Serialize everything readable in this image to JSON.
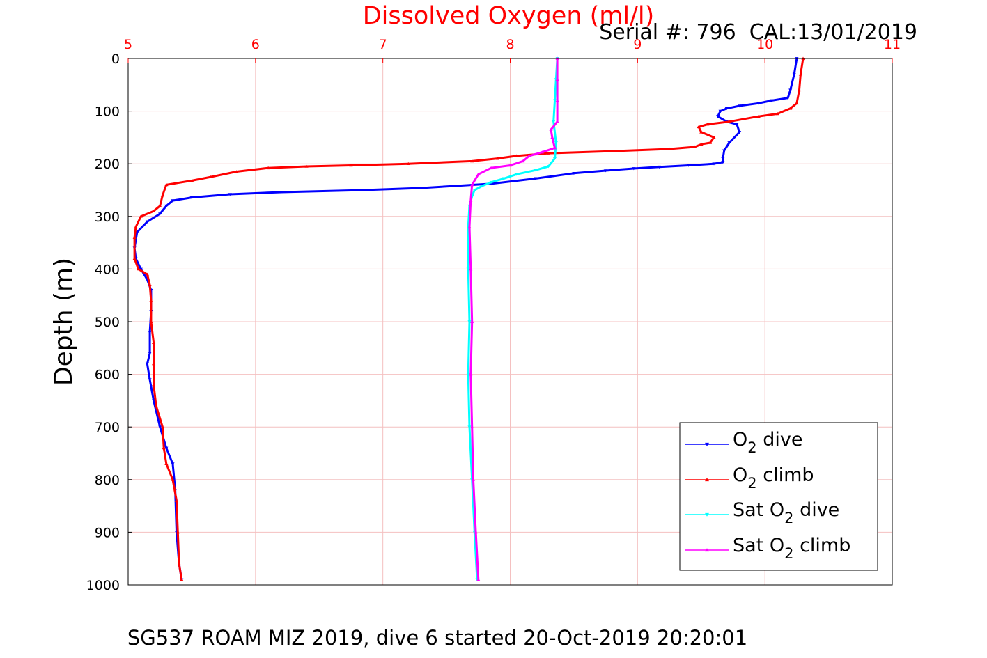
{
  "chart_data": {
    "type": "line",
    "title": "Dissolved Oxygen (ml/l)",
    "subtitle": "Serial #: 796  CAL:13/01/2019",
    "caption": "SG537 ROAM MIZ 2019, dive 6 started 20-Oct-2019 20:20:01",
    "xlabel": "",
    "ylabel": "Depth (m)",
    "xlim": [
      5,
      11
    ],
    "ylim": [
      0,
      1000
    ],
    "y_reversed": true,
    "x_axis_position": "top",
    "x_ticks": [
      5,
      6,
      7,
      8,
      9,
      10,
      11
    ],
    "y_ticks": [
      0,
      100,
      200,
      300,
      400,
      500,
      600,
      700,
      800,
      900,
      1000
    ],
    "grid": true,
    "legend_position": "bottom-right",
    "colors": {
      "title": "#ff0000",
      "x_ticks": "#ff0000",
      "grid": "#f4c0c0"
    },
    "series": [
      {
        "name": "O2 dive",
        "label_main": "O",
        "label_sub": "2",
        "label_rest": " dive",
        "color": "#0000ff",
        "marker": "triangle-down",
        "points": [
          [
            10.25,
            0
          ],
          [
            10.23,
            30
          ],
          [
            10.2,
            60
          ],
          [
            10.18,
            75
          ],
          [
            10.05,
            80
          ],
          [
            9.95,
            85
          ],
          [
            9.8,
            90
          ],
          [
            9.7,
            95
          ],
          [
            9.65,
            100
          ],
          [
            9.63,
            110
          ],
          [
            9.7,
            120
          ],
          [
            9.78,
            125
          ],
          [
            9.8,
            140
          ],
          [
            9.72,
            160
          ],
          [
            9.68,
            175
          ],
          [
            9.67,
            190
          ],
          [
            9.67,
            197
          ],
          [
            9.6,
            200
          ],
          [
            9.4,
            203
          ],
          [
            9.17,
            206
          ],
          [
            8.97,
            209
          ],
          [
            8.75,
            213
          ],
          [
            8.5,
            218
          ],
          [
            8.2,
            228
          ],
          [
            7.85,
            238
          ],
          [
            7.3,
            246
          ],
          [
            6.85,
            250
          ],
          [
            6.2,
            254
          ],
          [
            5.8,
            258
          ],
          [
            5.5,
            264
          ],
          [
            5.35,
            270
          ],
          [
            5.3,
            280
          ],
          [
            5.25,
            295
          ],
          [
            5.15,
            310
          ],
          [
            5.07,
            330
          ],
          [
            5.05,
            360
          ],
          [
            5.06,
            380
          ],
          [
            5.1,
            400
          ],
          [
            5.15,
            420
          ],
          [
            5.18,
            440
          ],
          [
            5.18,
            480
          ],
          [
            5.17,
            520
          ],
          [
            5.17,
            560
          ],
          [
            5.15,
            580
          ],
          [
            5.17,
            610
          ],
          [
            5.2,
            650
          ],
          [
            5.25,
            700
          ],
          [
            5.3,
            740
          ],
          [
            5.35,
            770
          ],
          [
            5.37,
            820
          ],
          [
            5.38,
            900
          ],
          [
            5.4,
            960
          ],
          [
            5.42,
            990
          ]
        ]
      },
      {
        "name": "O2 climb",
        "label_main": "O",
        "label_sub": "2",
        "label_rest": " climb",
        "color": "#ff0000",
        "marker": "triangle-up",
        "points": [
          [
            5.42,
            990
          ],
          [
            5.4,
            960
          ],
          [
            5.39,
            900
          ],
          [
            5.38,
            840
          ],
          [
            5.35,
            800
          ],
          [
            5.3,
            770
          ],
          [
            5.28,
            740
          ],
          [
            5.27,
            700
          ],
          [
            5.22,
            660
          ],
          [
            5.2,
            620
          ],
          [
            5.2,
            580
          ],
          [
            5.2,
            540
          ],
          [
            5.18,
            500
          ],
          [
            5.18,
            460
          ],
          [
            5.17,
            430
          ],
          [
            5.15,
            410
          ],
          [
            5.08,
            400
          ],
          [
            5.05,
            380
          ],
          [
            5.05,
            340
          ],
          [
            5.06,
            320
          ],
          [
            5.1,
            300
          ],
          [
            5.2,
            290
          ],
          [
            5.25,
            280
          ],
          [
            5.27,
            260
          ],
          [
            5.3,
            240
          ],
          [
            5.5,
            232
          ],
          [
            5.65,
            225
          ],
          [
            5.85,
            215
          ],
          [
            6.1,
            208
          ],
          [
            6.4,
            205
          ],
          [
            6.75,
            203
          ],
          [
            7.2,
            200
          ],
          [
            7.7,
            195
          ],
          [
            7.9,
            190
          ],
          [
            8.05,
            185
          ],
          [
            8.3,
            180
          ],
          [
            8.8,
            176
          ],
          [
            9.25,
            172
          ],
          [
            9.45,
            168
          ],
          [
            9.5,
            163
          ],
          [
            9.57,
            160
          ],
          [
            9.6,
            150
          ],
          [
            9.5,
            140
          ],
          [
            9.48,
            130
          ],
          [
            9.55,
            125
          ],
          [
            9.72,
            120
          ],
          [
            9.95,
            110
          ],
          [
            10.1,
            105
          ],
          [
            10.2,
            95
          ],
          [
            10.25,
            85
          ],
          [
            10.27,
            60
          ],
          [
            10.28,
            30
          ],
          [
            10.3,
            0
          ]
        ]
      },
      {
        "name": "Sat O2 dive",
        "label_main": "Sat O",
        "label_sub": "2",
        "label_rest": " dive",
        "color": "#00ffff",
        "marker": "triangle-down",
        "points": [
          [
            8.37,
            0
          ],
          [
            8.36,
            40
          ],
          [
            8.35,
            80
          ],
          [
            8.34,
            120
          ],
          [
            8.36,
            160
          ],
          [
            8.35,
            190
          ],
          [
            8.3,
            205
          ],
          [
            8.2,
            212
          ],
          [
            8.05,
            220
          ],
          [
            7.95,
            228
          ],
          [
            7.85,
            235
          ],
          [
            7.78,
            242
          ],
          [
            7.72,
            250
          ],
          [
            7.7,
            262
          ],
          [
            7.68,
            280
          ],
          [
            7.67,
            320
          ],
          [
            7.67,
            400
          ],
          [
            7.68,
            500
          ],
          [
            7.67,
            600
          ],
          [
            7.68,
            700
          ],
          [
            7.7,
            800
          ],
          [
            7.72,
            900
          ],
          [
            7.74,
            990
          ]
        ]
      },
      {
        "name": "Sat O2 climb",
        "label_main": "Sat O",
        "label_sub": "2",
        "label_rest": " climb",
        "color": "#ff00ff",
        "marker": "triangle-up",
        "points": [
          [
            7.75,
            990
          ],
          [
            7.73,
            900
          ],
          [
            7.71,
            800
          ],
          [
            7.7,
            700
          ],
          [
            7.69,
            600
          ],
          [
            7.7,
            500
          ],
          [
            7.69,
            400
          ],
          [
            7.68,
            320
          ],
          [
            7.69,
            270
          ],
          [
            7.7,
            240
          ],
          [
            7.75,
            220
          ],
          [
            7.85,
            208
          ],
          [
            8.0,
            203
          ],
          [
            8.1,
            195
          ],
          [
            8.15,
            185
          ],
          [
            8.25,
            178
          ],
          [
            8.35,
            170
          ],
          [
            8.33,
            150
          ],
          [
            8.32,
            135
          ],
          [
            8.37,
            120
          ],
          [
            8.37,
            80
          ],
          [
            8.37,
            40
          ],
          [
            8.37,
            0
          ]
        ]
      }
    ]
  }
}
